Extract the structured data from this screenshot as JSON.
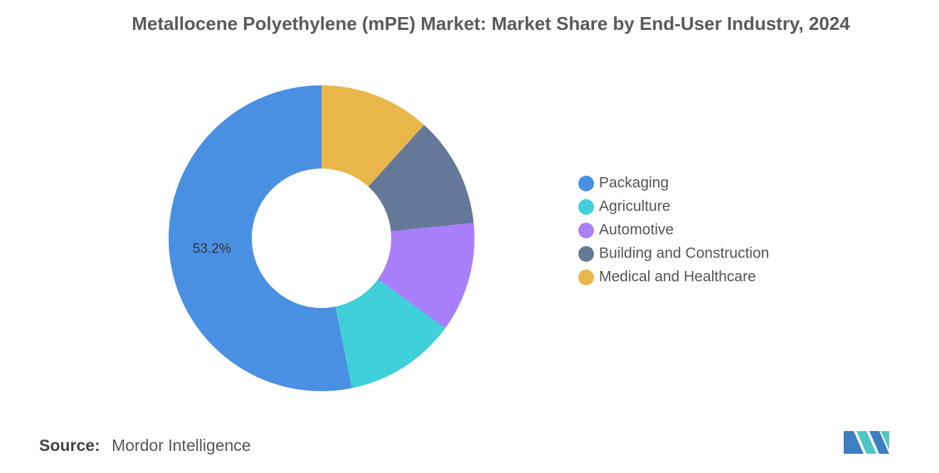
{
  "chart_data": {
    "type": "donut",
    "title": "Metallocene Polyethylene (mPE) Market: Market Share by End-User Industry, 2024",
    "categories": [
      "Packaging",
      "Agriculture",
      "Automotive",
      "Building and Construction",
      "Medical and Healthcare"
    ],
    "values": [
      53.2,
      11.8,
      11.6,
      11.7,
      11.7
    ],
    "value_labels": [
      "53.2%",
      null,
      null,
      null,
      null
    ],
    "colors": [
      "#4a90e2",
      "#3fd0da",
      "#a97ffb",
      "#66789a",
      "#e9b64a"
    ],
    "legend": "right"
  },
  "source_label": "Source:",
  "source": "Mordor Intelligence"
}
